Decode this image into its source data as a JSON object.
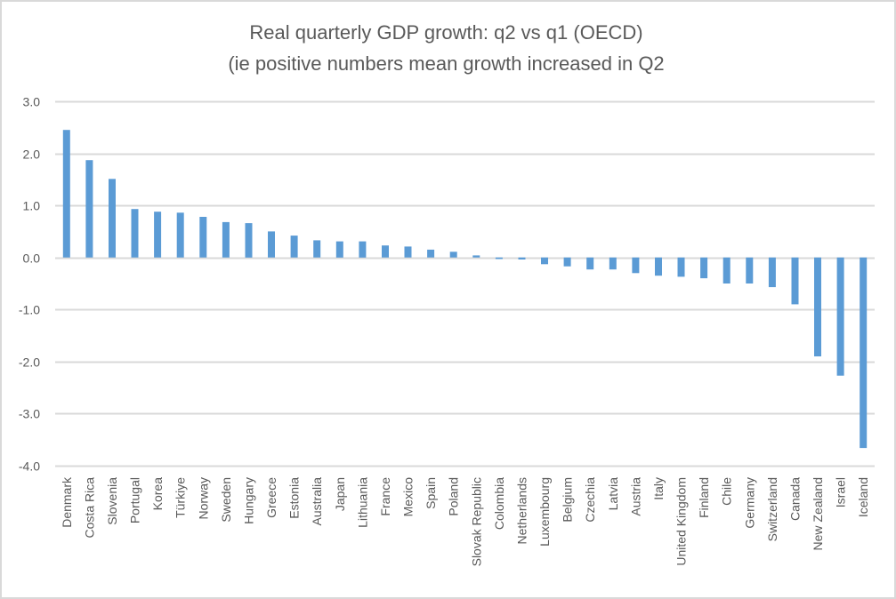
{
  "chart_data": {
    "type": "bar",
    "title": "Real quarterly GDP growth: q2 vs q1  (OECD)",
    "subtitle": "(ie positive numbers mean growth increased in Q2",
    "xlabel": "",
    "ylabel": "",
    "ylim": [
      -4.0,
      3.0
    ],
    "yticks": [
      3.0,
      2.0,
      1.0,
      0.0,
      -1.0,
      -2.0,
      -3.0,
      -4.0
    ],
    "ytick_labels": [
      "3.0",
      "2.0",
      "1.0",
      "0.0",
      "-1.0",
      "-2.0",
      "-3.0",
      "-4.0"
    ],
    "grid": true,
    "legend": "none",
    "bar_color": "#5b9bd5",
    "grid_color": "#d9d9d9",
    "categories": [
      "Denmark",
      "Costa Rica",
      "Slovenia",
      "Portugal",
      "Korea",
      "Türkiye",
      "Norway",
      "Sweden",
      "Hungary",
      "Greece",
      "Estonia",
      "Australia",
      "Japan",
      "Lithuania",
      "France",
      "Mexico",
      "Spain",
      "Poland",
      "Slovak Republic",
      "Colombia",
      "Netherlands",
      "Luxembourg",
      "Belgium",
      "Czechia",
      "Latvia",
      "Austria",
      "Italy",
      "United Kingdom",
      "Finland",
      "Chile",
      "Germany",
      "Switzerland",
      "Canada",
      "New Zealand",
      "Israel",
      "Iceland"
    ],
    "values": [
      2.45,
      1.87,
      1.51,
      0.93,
      0.88,
      0.86,
      0.78,
      0.68,
      0.66,
      0.5,
      0.42,
      0.33,
      0.31,
      0.31,
      0.23,
      0.21,
      0.15,
      0.11,
      0.04,
      -0.03,
      -0.04,
      -0.13,
      -0.17,
      -0.23,
      -0.23,
      -0.3,
      -0.35,
      -0.37,
      -0.4,
      -0.5,
      -0.5,
      -0.57,
      -0.9,
      -1.9,
      -2.27,
      -3.66
    ]
  }
}
